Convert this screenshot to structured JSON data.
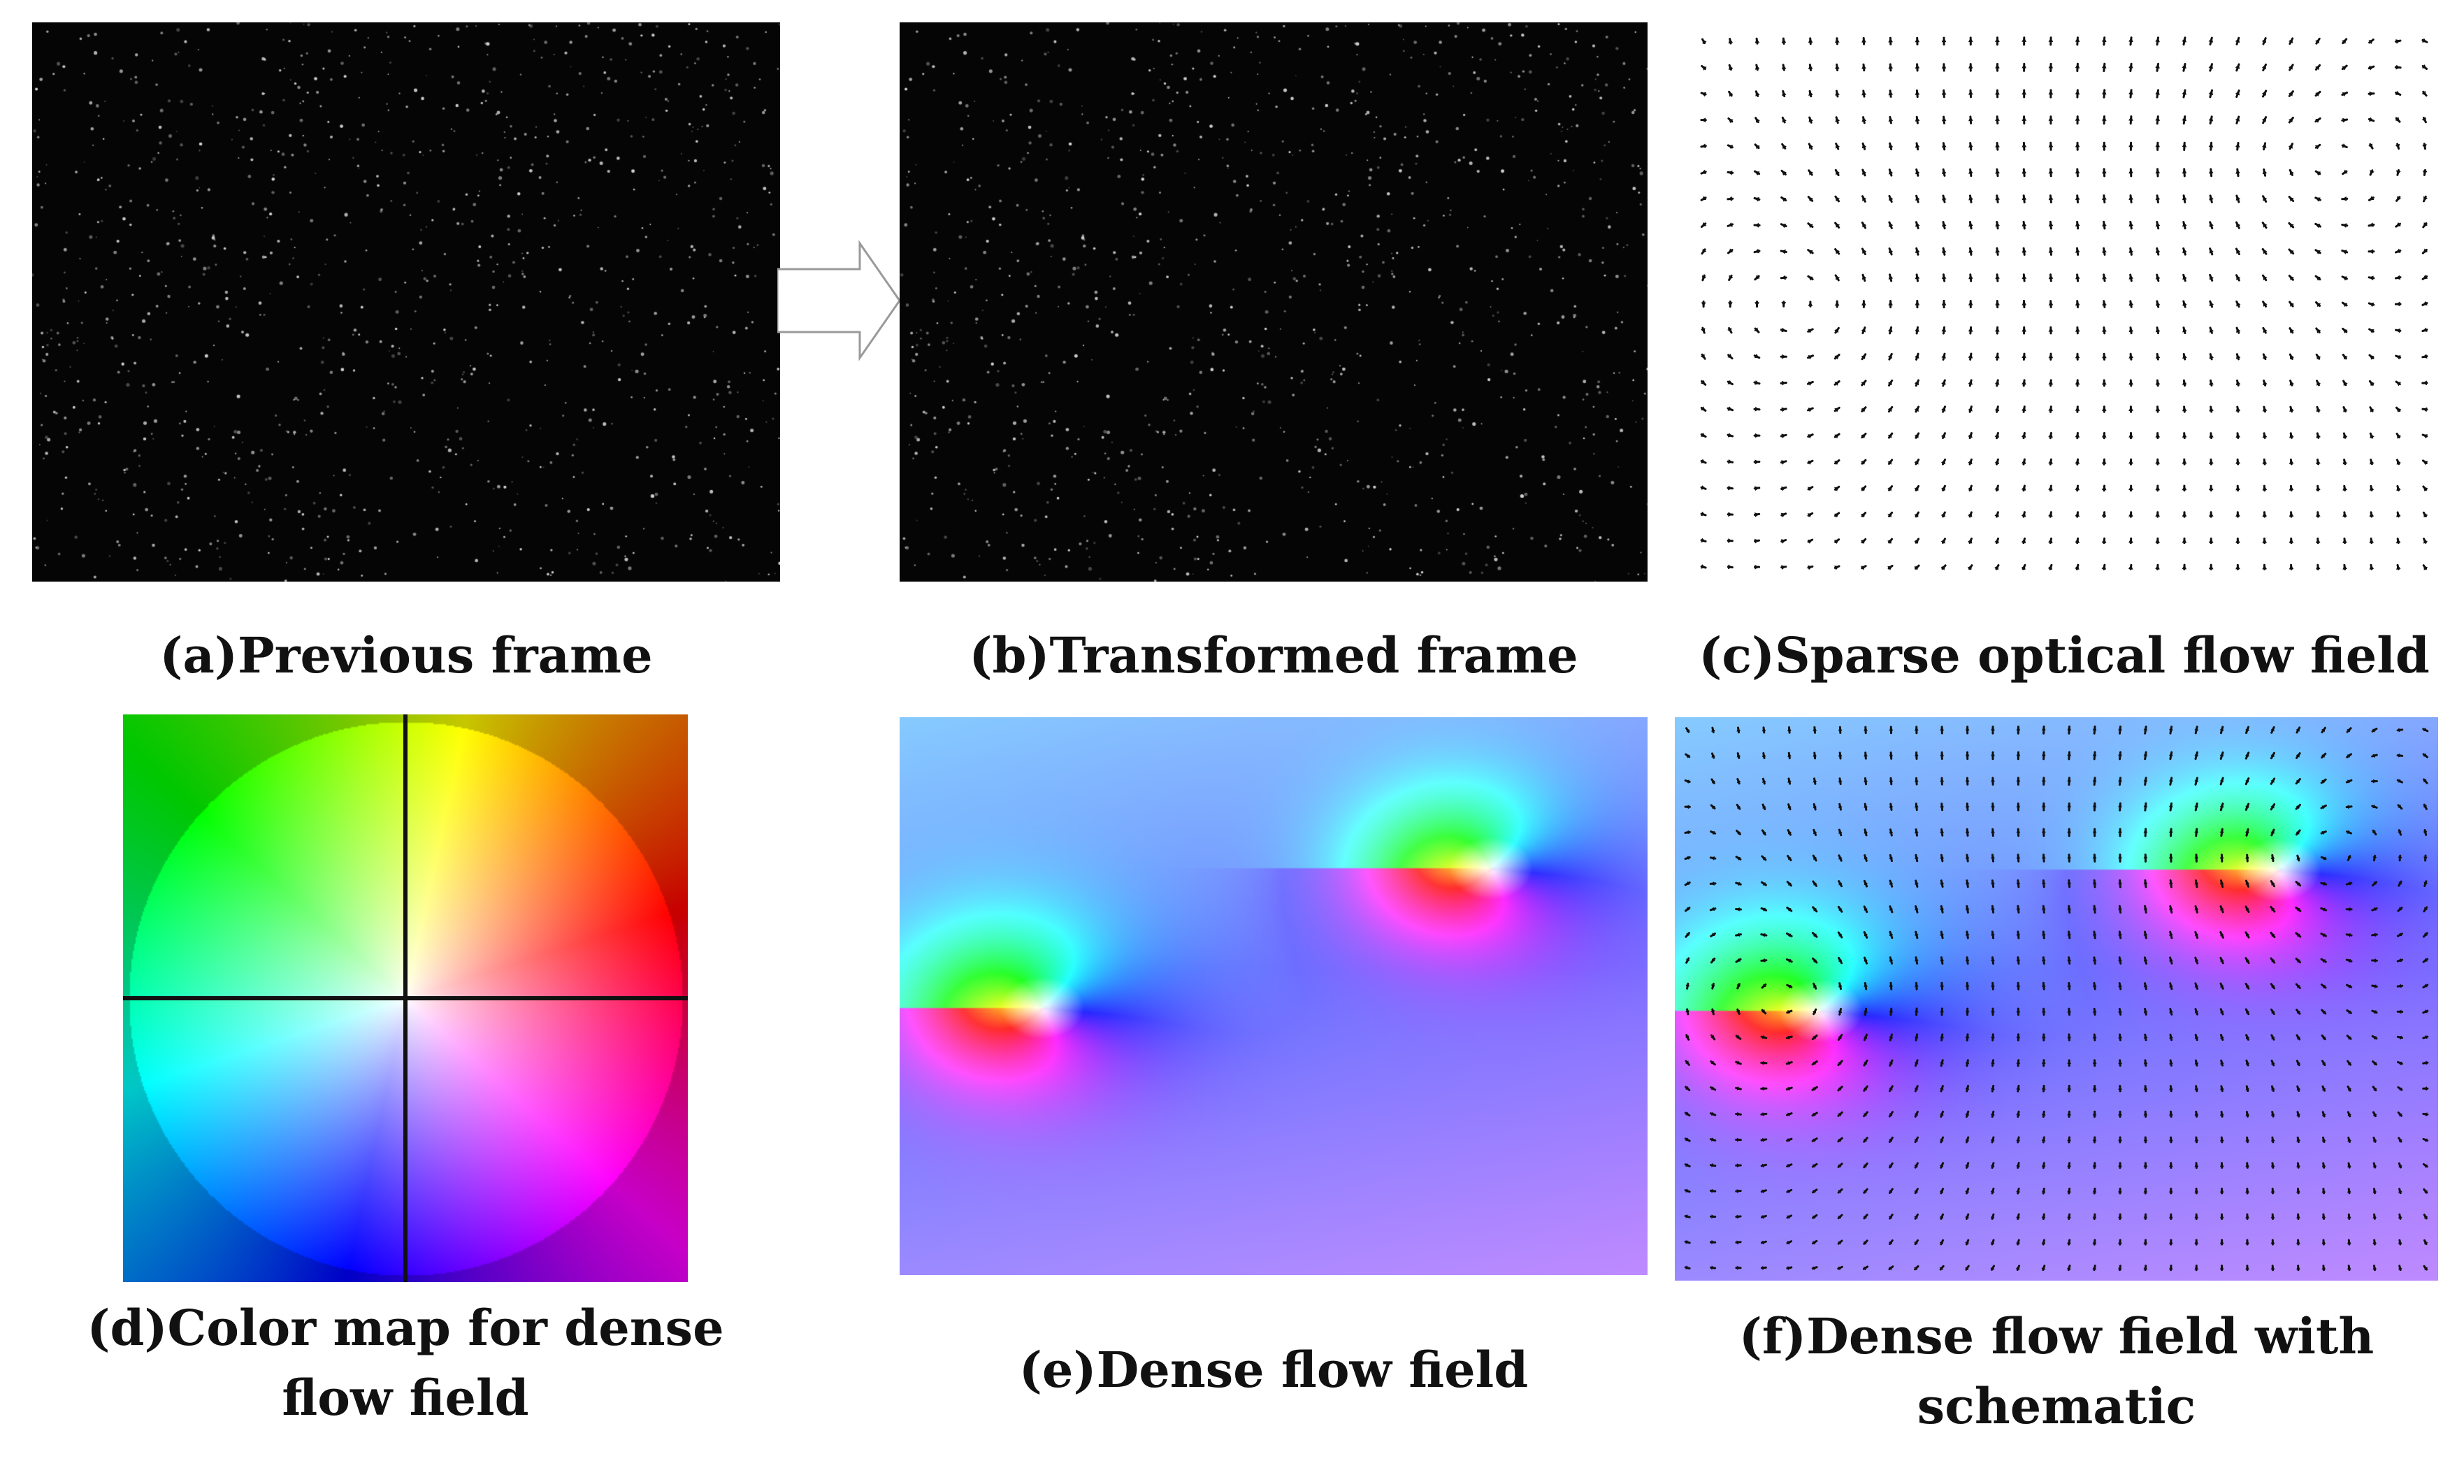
{
  "figure": {
    "panels": [
      {
        "id": "a",
        "caption": [
          "(a)Previous frame"
        ]
      },
      {
        "id": "b",
        "caption": [
          "(b)Transformed frame"
        ]
      },
      {
        "id": "c",
        "caption": [
          "(c)Sparse optical flow field"
        ]
      },
      {
        "id": "d",
        "caption": [
          "(d)Color map for dense",
          "flow field"
        ]
      },
      {
        "id": "e",
        "caption": [
          "(e)Dense flow field"
        ]
      },
      {
        "id": "f",
        "caption": [
          "(f)Dense flow field with",
          "schematic"
        ]
      }
    ],
    "colors": {
      "frame_background": "#050505",
      "particle": "#d8d8d8",
      "arrow_stroke": "#9a9a9a",
      "flow_vector": "#111111",
      "axis_line": "#111111"
    },
    "icons": {
      "arrow": "right-arrow-outline-icon",
      "particles": "particle-dots",
      "vectors": "flow-vector-arrows"
    }
  }
}
